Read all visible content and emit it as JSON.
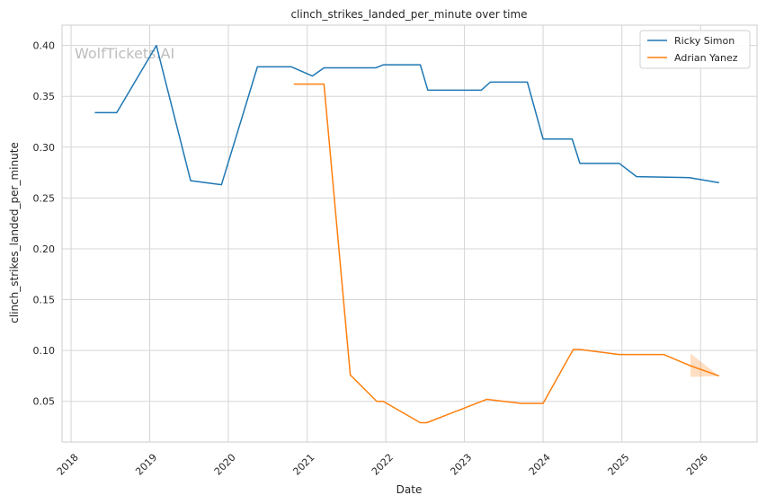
{
  "watermark": "WolfTickets.AI",
  "chart_data": {
    "type": "line",
    "title": "clinch_strikes_landed_per_minute over time",
    "xlabel": "Date",
    "ylabel": "clinch_strikes_landed_per_minute",
    "xlim": [
      "2017-11-20",
      "2026-09-20"
    ],
    "ylim": [
      0.01,
      0.42
    ],
    "x_ticks": [
      "2018",
      "2019",
      "2020",
      "2021",
      "2022",
      "2023",
      "2024",
      "2025",
      "2026"
    ],
    "y_ticks": [
      "0.05",
      "0.10",
      "0.15",
      "0.20",
      "0.25",
      "0.30",
      "0.35",
      "0.40"
    ],
    "grid": true,
    "legend_position": "top-right",
    "series": [
      {
        "name": "Ricky Simon",
        "color": "#1f77b4",
        "points": [
          [
            "2018-04-21",
            0.334
          ],
          [
            "2018-08-01",
            0.334
          ],
          [
            "2019-02-01",
            0.4
          ],
          [
            "2019-07-10",
            0.267
          ],
          [
            "2019-11-30",
            0.263
          ],
          [
            "2020-05-15",
            0.379
          ],
          [
            "2020-10-20",
            0.379
          ],
          [
            "2021-01-25",
            0.37
          ],
          [
            "2021-03-20",
            0.378
          ],
          [
            "2021-11-15",
            0.378
          ],
          [
            "2021-12-20",
            0.381
          ],
          [
            "2022-06-10",
            0.381
          ],
          [
            "2022-07-15",
            0.356
          ],
          [
            "2023-03-20",
            0.356
          ],
          [
            "2023-05-01",
            0.364
          ],
          [
            "2023-10-20",
            0.364
          ],
          [
            "2024-01-01",
            0.308
          ],
          [
            "2024-05-15",
            0.308
          ],
          [
            "2024-06-20",
            0.284
          ],
          [
            "2024-12-20",
            0.284
          ],
          [
            "2025-03-10",
            0.271
          ],
          [
            "2025-11-10",
            0.27
          ],
          [
            "2026-03-28",
            0.265
          ]
        ]
      },
      {
        "name": "Adrian Yanez",
        "color": "#ff7f0e",
        "points": [
          [
            "2020-10-31",
            0.362
          ],
          [
            "2021-03-20",
            0.362
          ],
          [
            "2021-07-20",
            0.076
          ],
          [
            "2021-11-20",
            0.05
          ],
          [
            "2021-12-20",
            0.05
          ],
          [
            "2022-06-10",
            0.029
          ],
          [
            "2022-07-10",
            0.029
          ],
          [
            "2023-04-15",
            0.052
          ],
          [
            "2023-09-20",
            0.048
          ],
          [
            "2024-01-01",
            0.048
          ],
          [
            "2024-05-20",
            0.101
          ],
          [
            "2024-06-20",
            0.101
          ],
          [
            "2024-12-20",
            0.096
          ],
          [
            "2025-07-15",
            0.096
          ],
          [
            "2025-11-15",
            0.085
          ],
          [
            "2026-03-28",
            0.075
          ]
        ],
        "band": {
          "upper": [
            [
              "2025-11-15",
              0.097
            ],
            [
              "2026-03-28",
              0.075
            ]
          ],
          "lower": [
            [
              "2025-11-15",
              0.074
            ],
            [
              "2026-03-28",
              0.075
            ]
          ]
        }
      }
    ]
  }
}
